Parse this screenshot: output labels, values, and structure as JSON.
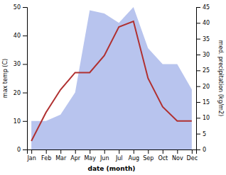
{
  "chart_data": {
    "type": "line",
    "xlabel": "date (month)",
    "ylabel": "max temp (C)",
    "y2label": "med. precipitation (kg/m2)",
    "categories": [
      "Jan",
      "Feb",
      "Mar",
      "Apr",
      "May",
      "Jun",
      "Jul",
      "Aug",
      "Sep",
      "Oct",
      "Nov",
      "Dec"
    ],
    "series": [
      {
        "type": "area",
        "axis": "y2",
        "color": "#b8c4ee",
        "values": [
          9,
          9,
          11,
          18,
          44,
          43,
          40,
          45,
          32,
          27,
          27,
          19
        ]
      },
      {
        "type": "line",
        "color": "#b03030",
        "values": [
          3,
          13,
          21,
          27,
          27,
          33,
          43,
          45,
          25,
          15,
          10,
          10
        ]
      }
    ],
    "ylim": [
      0,
      50
    ],
    "yticks": [
      0,
      10,
      20,
      30,
      40,
      50
    ],
    "y2lim": [
      0,
      45
    ],
    "y2ticks": [
      0,
      5,
      10,
      15,
      20,
      25,
      30,
      35,
      40,
      45
    ],
    "grid": false
  }
}
